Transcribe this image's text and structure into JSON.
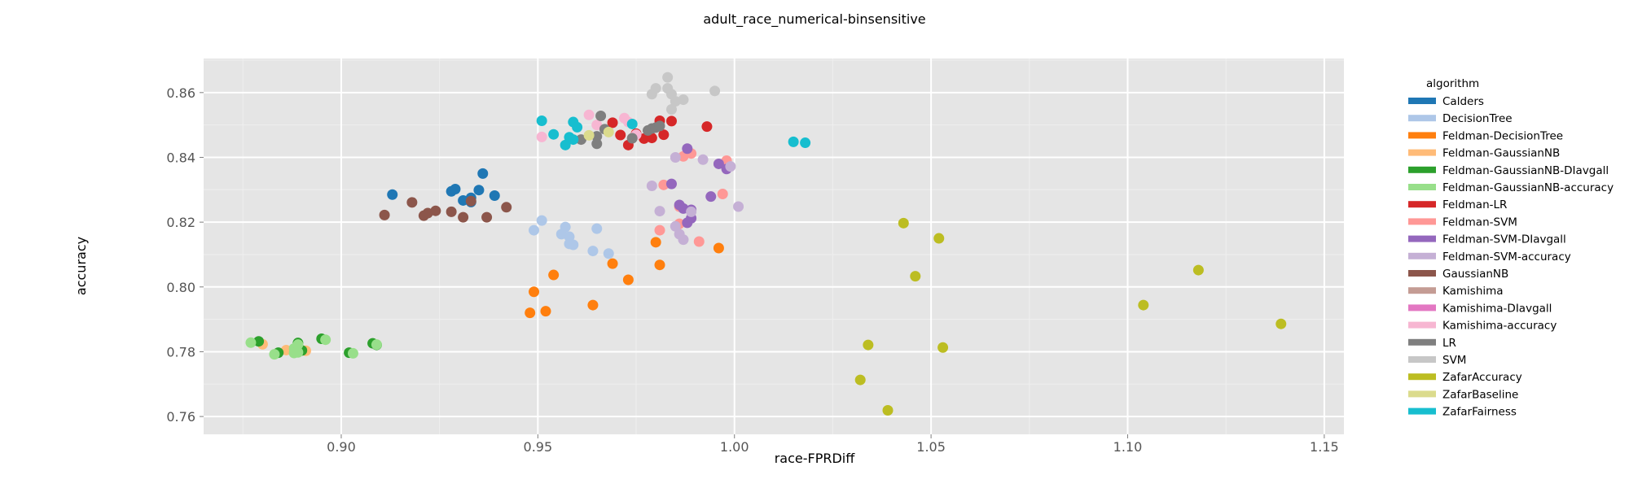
{
  "chart_data": {
    "type": "scatter",
    "title": "adult_race_numerical-binsensitive",
    "xlabel": "race-FPRDiff",
    "ylabel": "accuracy",
    "xlim": [
      0.865,
      1.155
    ],
    "ylim": [
      0.7545,
      0.8705
    ],
    "xticks": [
      0.9,
      0.95,
      1.0,
      1.05,
      1.1,
      1.15
    ],
    "xtick_labels": [
      "0.90",
      "0.95",
      "1.00",
      "1.05",
      "1.10",
      "1.15"
    ],
    "yticks": [
      0.76,
      0.78,
      0.8,
      0.82,
      0.84,
      0.86
    ],
    "ytick_labels": [
      "0.76",
      "0.78",
      "0.80",
      "0.82",
      "0.84",
      "0.86"
    ],
    "grid": true,
    "legend": {
      "title": "algorithm",
      "placement": "right"
    },
    "series": [
      {
        "name": "Calders",
        "color": "#1f77b4",
        "points": [
          [
            0.913,
            0.8285
          ],
          [
            0.928,
            0.8295
          ],
          [
            0.929,
            0.8302
          ],
          [
            0.931,
            0.8267
          ],
          [
            0.933,
            0.8262
          ],
          [
            0.933,
            0.8275
          ],
          [
            0.935,
            0.8299
          ],
          [
            0.936,
            0.835
          ],
          [
            0.939,
            0.8282
          ]
        ]
      },
      {
        "name": "DecisionTree",
        "color": "#aec7e8",
        "points": [
          [
            0.949,
            0.8175
          ],
          [
            0.951,
            0.8205
          ],
          [
            0.956,
            0.8163
          ],
          [
            0.957,
            0.8185
          ],
          [
            0.958,
            0.8155
          ],
          [
            0.958,
            0.8133
          ],
          [
            0.959,
            0.813
          ],
          [
            0.964,
            0.8111
          ],
          [
            0.965,
            0.818
          ],
          [
            0.968,
            0.8103
          ]
        ]
      },
      {
        "name": "Feldman-DecisionTree",
        "color": "#ff7f0e",
        "points": [
          [
            0.948,
            0.792
          ],
          [
            0.949,
            0.7985
          ],
          [
            0.952,
            0.7925
          ],
          [
            0.954,
            0.8037
          ],
          [
            0.964,
            0.7944
          ],
          [
            0.969,
            0.8072
          ],
          [
            0.973,
            0.8022
          ],
          [
            0.98,
            0.8138
          ],
          [
            0.981,
            0.8068
          ],
          [
            0.996,
            0.812
          ]
        ]
      },
      {
        "name": "Feldman-GaussianNB",
        "color": "#ffbb78",
        "points": [
          [
            0.88,
            0.7823
          ],
          [
            0.886,
            0.7805
          ],
          [
            0.889,
            0.7815
          ],
          [
            0.891,
            0.7803
          ]
        ]
      },
      {
        "name": "Feldman-GaussianNB-DIavgall",
        "color": "#2ca02c",
        "points": [
          [
            0.879,
            0.7832
          ],
          [
            0.884,
            0.7797
          ],
          [
            0.889,
            0.7827
          ],
          [
            0.89,
            0.7804
          ],
          [
            0.895,
            0.784
          ],
          [
            0.902,
            0.7797
          ],
          [
            0.908,
            0.7826
          ],
          [
            0.909,
            0.7821
          ]
        ]
      },
      {
        "name": "Feldman-GaussianNB-accuracy",
        "color": "#98df8a",
        "points": [
          [
            0.877,
            0.7828
          ],
          [
            0.883,
            0.7792
          ],
          [
            0.888,
            0.7796
          ],
          [
            0.888,
            0.781
          ],
          [
            0.889,
            0.7822
          ],
          [
            0.889,
            0.7798
          ],
          [
            0.896,
            0.7837
          ],
          [
            0.903,
            0.7795
          ],
          [
            0.909,
            0.7822
          ]
        ]
      },
      {
        "name": "Feldman-LR",
        "color": "#d62728",
        "points": [
          [
            0.969,
            0.8507
          ],
          [
            0.971,
            0.8469
          ],
          [
            0.973,
            0.8438
          ],
          [
            0.975,
            0.8473
          ],
          [
            0.977,
            0.8458
          ],
          [
            0.979,
            0.846
          ],
          [
            0.981,
            0.8513
          ],
          [
            0.982,
            0.847
          ],
          [
            0.984,
            0.8512
          ],
          [
            0.993,
            0.8495
          ]
        ]
      },
      {
        "name": "Feldman-SVM",
        "color": "#ff9896",
        "points": [
          [
            0.981,
            0.8175
          ],
          [
            0.982,
            0.8315
          ],
          [
            0.986,
            0.8195
          ],
          [
            0.986,
            0.8248
          ],
          [
            0.987,
            0.8403
          ],
          [
            0.989,
            0.8412
          ],
          [
            0.991,
            0.814
          ],
          [
            0.997,
            0.8287
          ],
          [
            0.998,
            0.839
          ]
        ]
      },
      {
        "name": "Feldman-SVM-DIavgall",
        "color": "#9467bd",
        "points": [
          [
            0.984,
            0.8318
          ],
          [
            0.986,
            0.8253
          ],
          [
            0.987,
            0.8242
          ],
          [
            0.988,
            0.8198
          ],
          [
            0.988,
            0.8427
          ],
          [
            0.989,
            0.8212
          ],
          [
            0.989,
            0.8238
          ],
          [
            0.994,
            0.8279
          ],
          [
            0.996,
            0.838
          ],
          [
            0.998,
            0.8364
          ]
        ]
      },
      {
        "name": "Feldman-SVM-accuracy",
        "color": "#c5b0d5",
        "points": [
          [
            0.979,
            0.8312
          ],
          [
            0.981,
            0.8234
          ],
          [
            0.985,
            0.8187
          ],
          [
            0.985,
            0.84
          ],
          [
            0.986,
            0.8163
          ],
          [
            0.987,
            0.8146
          ],
          [
            0.989,
            0.8232
          ],
          [
            0.992,
            0.8393
          ],
          [
            0.999,
            0.8372
          ],
          [
            1.001,
            0.8248
          ]
        ]
      },
      {
        "name": "GaussianNB",
        "color": "#8c564b",
        "points": [
          [
            0.911,
            0.8222
          ],
          [
            0.918,
            0.8261
          ],
          [
            0.921,
            0.822
          ],
          [
            0.922,
            0.8228
          ],
          [
            0.924,
            0.8235
          ],
          [
            0.928,
            0.8232
          ],
          [
            0.931,
            0.8215
          ],
          [
            0.933,
            0.8265
          ],
          [
            0.937,
            0.8215
          ],
          [
            0.942,
            0.8246
          ]
        ]
      },
      {
        "name": "Kamishima",
        "color": "#c49c94",
        "points": []
      },
      {
        "name": "Kamishima-DIavgall",
        "color": "#e377c2",
        "points": []
      },
      {
        "name": "Kamishima-accuracy",
        "color": "#f7b6d2",
        "points": [
          [
            0.951,
            0.8463
          ],
          [
            0.963,
            0.8531
          ],
          [
            0.965,
            0.85
          ],
          [
            0.972,
            0.8521
          ],
          [
            0.973,
            0.8509
          ],
          [
            0.975,
            0.847
          ]
        ]
      },
      {
        "name": "LR",
        "color": "#7f7f7f",
        "points": [
          [
            0.961,
            0.8455
          ],
          [
            0.965,
            0.8465
          ],
          [
            0.965,
            0.8442
          ],
          [
            0.966,
            0.8528
          ],
          [
            0.967,
            0.8487
          ],
          [
            0.974,
            0.8459
          ],
          [
            0.978,
            0.8483
          ],
          [
            0.979,
            0.8489
          ],
          [
            0.98,
            0.8492
          ],
          [
            0.981,
            0.8497
          ]
        ]
      },
      {
        "name": "SVM",
        "color": "#c7c7c7",
        "points": [
          [
            0.979,
            0.8595
          ],
          [
            0.98,
            0.8613
          ],
          [
            0.983,
            0.8647
          ],
          [
            0.983,
            0.8613
          ],
          [
            0.984,
            0.8595
          ],
          [
            0.984,
            0.8548
          ],
          [
            0.985,
            0.8573
          ],
          [
            0.987,
            0.8578
          ],
          [
            0.995,
            0.8605
          ]
        ]
      },
      {
        "name": "ZafarAccuracy",
        "color": "#bcbd22",
        "points": [
          [
            1.032,
            0.7713
          ],
          [
            1.034,
            0.7821
          ],
          [
            1.039,
            0.7619
          ],
          [
            1.043,
            0.8197
          ],
          [
            1.046,
            0.8033
          ],
          [
            1.052,
            0.815
          ],
          [
            1.053,
            0.7813
          ],
          [
            1.104,
            0.7944
          ],
          [
            1.118,
            0.8052
          ],
          [
            1.139,
            0.7886
          ]
        ]
      },
      {
        "name": "ZafarBaseline",
        "color": "#dbdb8d",
        "points": [
          [
            0.963,
            0.8468
          ],
          [
            0.968,
            0.8478
          ]
        ]
      },
      {
        "name": "ZafarFairness",
        "color": "#17becf",
        "points": [
          [
            0.951,
            0.8513
          ],
          [
            0.954,
            0.8471
          ],
          [
            0.957,
            0.8438
          ],
          [
            0.958,
            0.8462
          ],
          [
            0.959,
            0.8509
          ],
          [
            0.959,
            0.8455
          ],
          [
            0.96,
            0.8493
          ],
          [
            0.974,
            0.8503
          ],
          [
            1.015,
            0.8448
          ],
          [
            1.018,
            0.8445
          ]
        ]
      }
    ]
  }
}
